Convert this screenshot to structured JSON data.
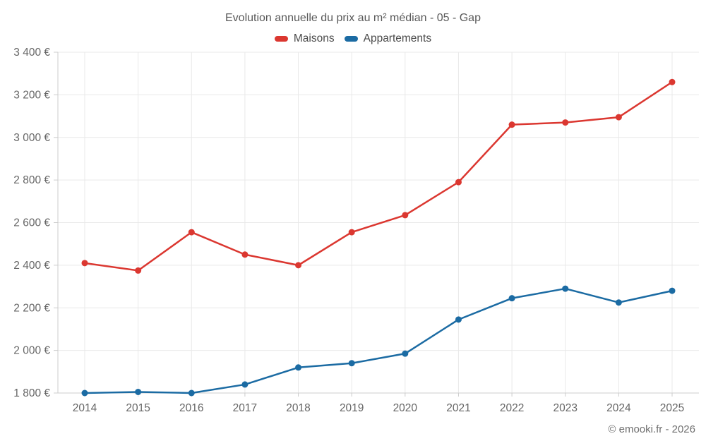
{
  "footer": {
    "text": "© emooki.fr - 2026"
  },
  "chart_data": {
    "type": "line",
    "title": "Evolution annuelle du prix au m² médian - 05 - Gap",
    "categories": [
      "2014",
      "2015",
      "2016",
      "2017",
      "2018",
      "2019",
      "2020",
      "2021",
      "2022",
      "2023",
      "2024",
      "2025"
    ],
    "series": [
      {
        "name": "Maisons",
        "color": "#db3730",
        "values": [
          2410,
          2375,
          2555,
          2450,
          2400,
          2555,
          2635,
          2790,
          3060,
          3070,
          3095,
          3260
        ]
      },
      {
        "name": "Appartements",
        "color": "#1b6ba3",
        "values": [
          1800,
          1805,
          1800,
          1840,
          1920,
          1940,
          1985,
          2145,
          2245,
          2290,
          2225,
          2280
        ]
      }
    ],
    "ylim": [
      1800,
      3400
    ],
    "ytick_step": 200,
    "y_unit": "€",
    "grid": true,
    "legend_position": "top",
    "xlabel": "",
    "ylabel": ""
  },
  "style": {
    "grid_color": "#e9e9e9",
    "axis_color": "#cccccc",
    "tick_text_color": "#666666",
    "title_color": "#595959",
    "legend_text_color": "#4a4a4a",
    "footer_color": "#6f6f6f",
    "background": "#ffffff"
  }
}
